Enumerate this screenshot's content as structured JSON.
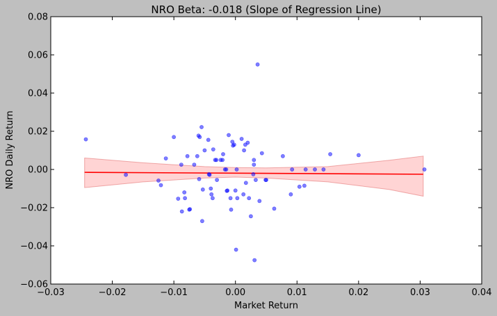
{
  "chart_data": {
    "type": "scatter",
    "title": "NRO Beta: -0.018 (Slope of Regression Line)",
    "xlabel": "Market Return",
    "ylabel": "NRO Daily Return",
    "xlim": [
      -0.03,
      0.04
    ],
    "ylim": [
      -0.06,
      0.08
    ],
    "xticks": [
      -0.03,
      -0.02,
      -0.01,
      0.0,
      0.01,
      0.02,
      0.03,
      0.04
    ],
    "xtick_labels": [
      "−0.03",
      "−0.02",
      "−0.01",
      "0.00",
      "0.01",
      "0.02",
      "0.03",
      "0.04"
    ],
    "yticks": [
      -0.06,
      -0.04,
      -0.02,
      0.0,
      0.02,
      0.04,
      0.06,
      0.08
    ],
    "ytick_labels": [
      "−0.06",
      "−0.04",
      "−0.02",
      "0.00",
      "0.02",
      "0.04",
      "0.06",
      "0.08"
    ],
    "grid": false,
    "colors": {
      "points": "#0000ff",
      "regression_line": "#ff0000",
      "confidence_band": "#ffa0a0",
      "figure_background": "#bfbfbf",
      "plot_background": "#ffffff"
    },
    "points": [
      [
        -0.0243,
        0.0158
      ],
      [
        -0.0178,
        -0.0028
      ],
      [
        -0.0125,
        -0.0058
      ],
      [
        -0.0121,
        -0.0082
      ],
      [
        -0.0113,
        0.0058
      ],
      [
        -0.01,
        0.017
      ],
      [
        -0.0093,
        -0.0153
      ],
      [
        -0.0088,
        0.0025
      ],
      [
        -0.0087,
        -0.022
      ],
      [
        -0.0083,
        -0.012
      ],
      [
        -0.0082,
        -0.015
      ],
      [
        -0.0078,
        0.007
      ],
      [
        -0.0075,
        -0.021
      ],
      [
        -0.0074,
        -0.0208
      ],
      [
        -0.0067,
        0.0025
      ],
      [
        -0.0062,
        0.007
      ],
      [
        -0.006,
        0.0177
      ],
      [
        -0.0059,
        -0.005
      ],
      [
        -0.0058,
        0.017
      ],
      [
        -0.0055,
        0.0222
      ],
      [
        -0.0054,
        -0.027
      ],
      [
        -0.0053,
        -0.0105
      ],
      [
        -0.005,
        0.01
      ],
      [
        -0.0044,
        0.0155
      ],
      [
        -0.0043,
        -0.0025
      ],
      [
        -0.0042,
        -0.0028
      ],
      [
        -0.004,
        -0.01
      ],
      [
        -0.0039,
        -0.013
      ],
      [
        -0.0037,
        -0.015
      ],
      [
        -0.0036,
        0.0105
      ],
      [
        -0.0033,
        0.005
      ],
      [
        -0.0031,
        0.005
      ],
      [
        -0.003,
        -0.0055
      ],
      [
        -0.0024,
        0.005
      ],
      [
        -0.0021,
        0.005
      ],
      [
        -0.002,
        0.008
      ],
      [
        -0.0017,
        0.0
      ],
      [
        -0.0015,
        0.0
      ],
      [
        -0.0014,
        -0.0112
      ],
      [
        -0.0013,
        -0.011
      ],
      [
        -0.0011,
        0.018
      ],
      [
        -0.0008,
        -0.015
      ],
      [
        -0.0007,
        -0.021
      ],
      [
        -0.0005,
        0.0145
      ],
      [
        -0.0004,
        0.0125
      ],
      [
        -0.0002,
        0.013
      ],
      [
        0.0,
        -0.011
      ],
      [
        0.0001,
        -0.042
      ],
      [
        0.0002,
        0.0
      ],
      [
        0.0003,
        -0.015
      ],
      [
        0.001,
        0.016
      ],
      [
        0.0013,
        -0.013
      ],
      [
        0.0014,
        0.01
      ],
      [
        0.0016,
        0.013
      ],
      [
        0.0017,
        -0.007
      ],
      [
        0.002,
        0.014
      ],
      [
        0.0022,
        -0.015
      ],
      [
        0.0025,
        -0.0245
      ],
      [
        0.0029,
        -0.0025
      ],
      [
        0.003,
        0.0025
      ],
      [
        0.003,
        0.005
      ],
      [
        0.0031,
        -0.0475
      ],
      [
        0.0033,
        -0.0055
      ],
      [
        0.0036,
        0.055
      ],
      [
        0.0039,
        -0.0165
      ],
      [
        0.0043,
        0.0085
      ],
      [
        0.0049,
        -0.0055
      ],
      [
        0.005,
        -0.0055
      ],
      [
        0.0063,
        -0.0205
      ],
      [
        0.0077,
        0.007
      ],
      [
        0.009,
        -0.013
      ],
      [
        0.0092,
        0.0
      ],
      [
        0.0104,
        -0.009
      ],
      [
        0.0112,
        -0.0085
      ],
      [
        0.0114,
        0.0
      ],
      [
        0.0129,
        0.0
      ],
      [
        0.0143,
        0.0
      ],
      [
        0.0154,
        0.008
      ],
      [
        0.02,
        0.0075
      ],
      [
        0.0307,
        0.0
      ]
    ],
    "regression_line": {
      "x": [
        -0.0245,
        0.0305
      ],
      "y": [
        -0.0015,
        -0.0025
      ]
    },
    "confidence_band": {
      "x": [
        -0.0245,
        -0.015,
        -0.005,
        0.0,
        0.005,
        0.015,
        0.025,
        0.0305
      ],
      "upper": [
        0.006,
        0.0035,
        0.0015,
        0.001,
        0.0008,
        0.0015,
        0.0048,
        0.007
      ],
      "lower": [
        -0.0095,
        -0.0065,
        -0.0045,
        -0.004,
        -0.0045,
        -0.0065,
        -0.0105,
        -0.014
      ]
    }
  }
}
